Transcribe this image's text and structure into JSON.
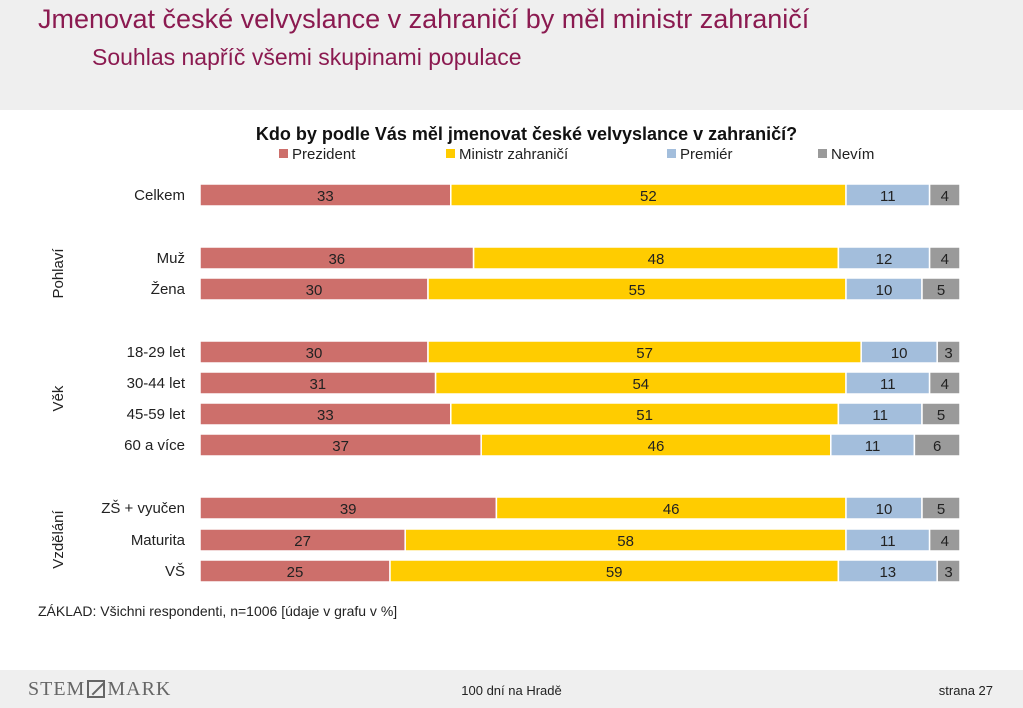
{
  "header": {
    "title": "Jmenovat české velvyslance v zahraničí by měl ministr zahraničí",
    "subtitle": "Souhlas napříč všemi skupinami populace"
  },
  "chart_data": {
    "type": "bar",
    "orientation": "horizontal",
    "stacked": true,
    "title": "Kdo by podle Vás měl jmenovat české velvyslance v zahraničí?",
    "legend_position": "top",
    "series": [
      {
        "name": "Prezident",
        "color": "#cd6f6b",
        "values": [
          33,
          36,
          30,
          30,
          31,
          33,
          37,
          39,
          27,
          25
        ]
      },
      {
        "name": "Ministr zahraničí",
        "color": "#ffcc00",
        "values": [
          52,
          48,
          55,
          57,
          54,
          51,
          46,
          46,
          58,
          59
        ]
      },
      {
        "name": "Premiér",
        "color": "#a3bedc",
        "values": [
          11,
          12,
          10,
          10,
          11,
          11,
          11,
          10,
          11,
          13
        ]
      },
      {
        "name": "Nevím",
        "color": "#9a9a9a",
        "values": [
          4,
          4,
          5,
          3,
          4,
          5,
          6,
          5,
          4,
          3
        ]
      }
    ],
    "categories": [
      "Celkem",
      "Muž",
      "Žena",
      "18-29 let",
      "30-44 let",
      "45-59 let",
      "60 a více",
      "ZŠ + vyučen",
      "Maturita",
      "VŠ"
    ],
    "groups": [
      {
        "label": "",
        "rows": [
          0
        ]
      },
      {
        "label": "Pohlaví",
        "rows": [
          1,
          2
        ]
      },
      {
        "label": "Věk",
        "rows": [
          3,
          4,
          5,
          6
        ]
      },
      {
        "label": "Vzdělání",
        "rows": [
          7,
          8,
          9
        ]
      }
    ],
    "xlim": [
      0,
      100
    ]
  },
  "base_note": "ZÁKLAD: Všichni respondenti, n=1006 [údaje v grafu v %]",
  "footer": {
    "logo_left": "STEM",
    "logo_right": "MARK",
    "center": "100 dní na Hradě",
    "page": "strana 27"
  }
}
